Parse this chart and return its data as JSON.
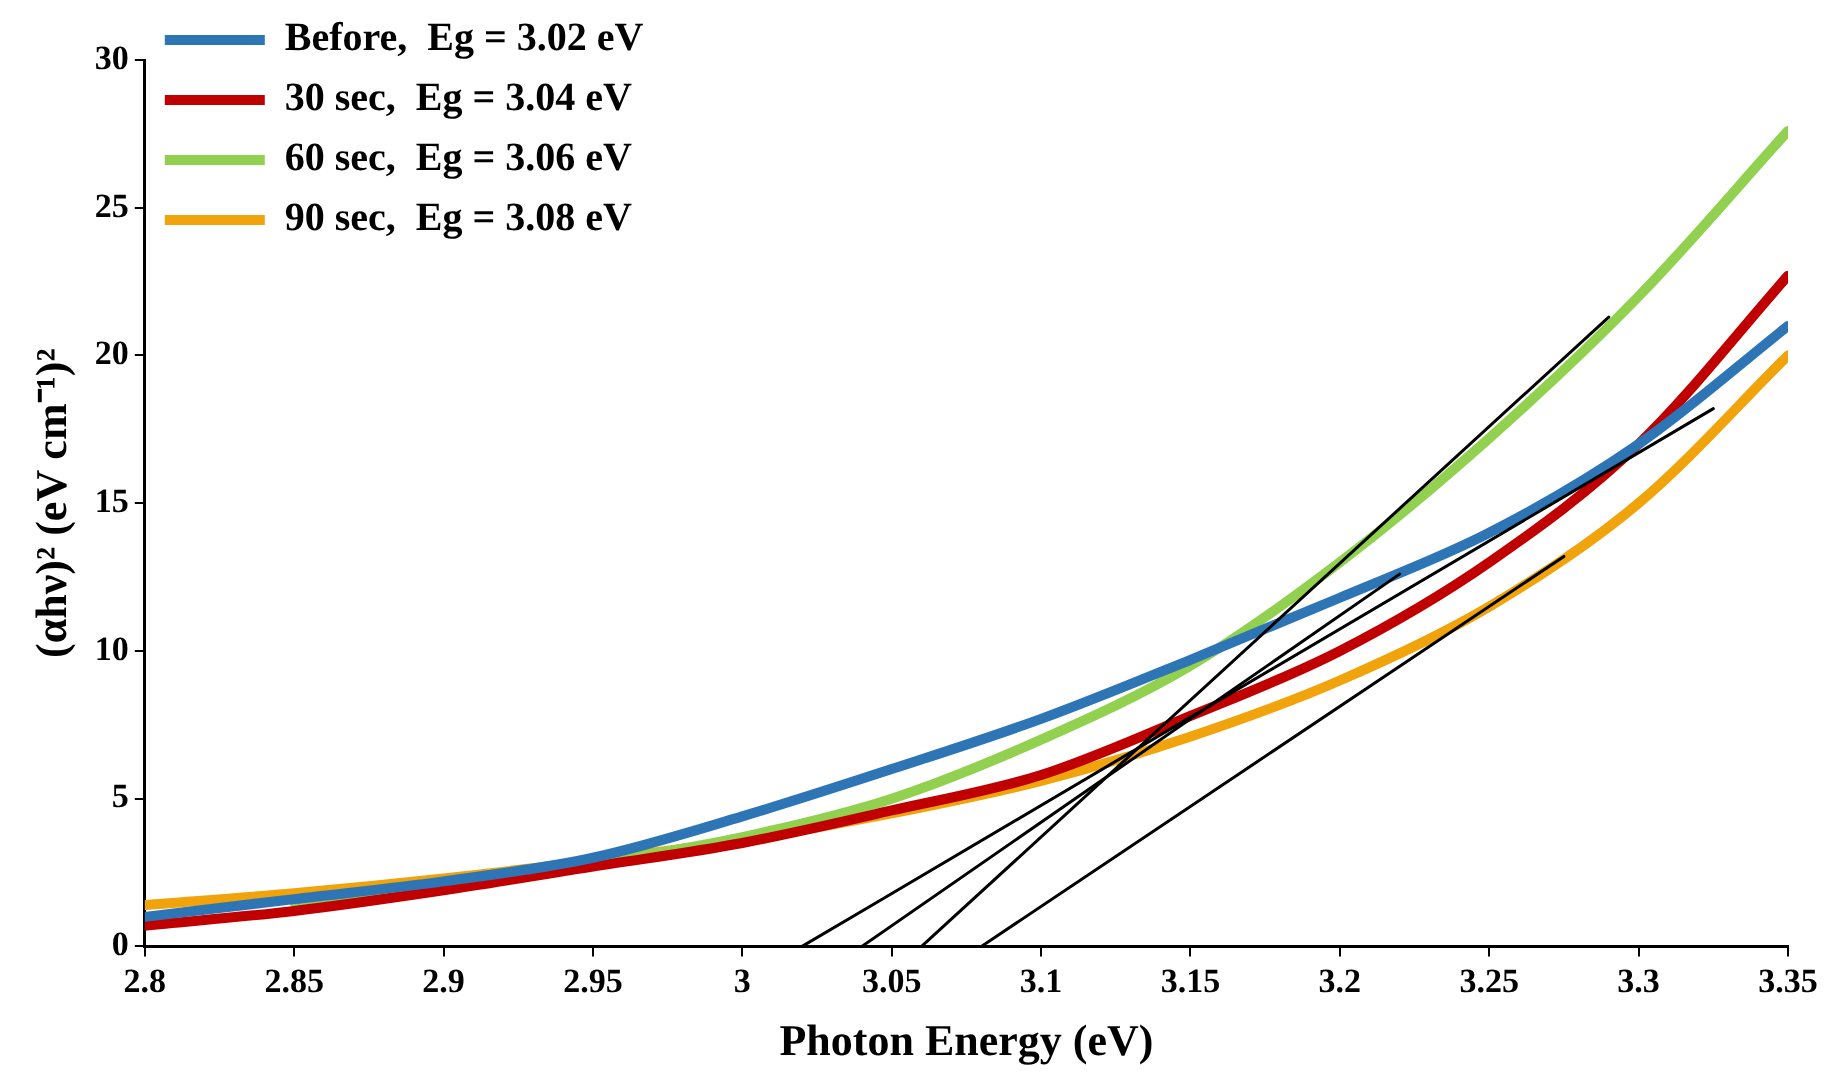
{
  "chart_data": {
    "type": "line",
    "xlabel": "Photon Energy (eV)",
    "ylabel": "(αhν)² (eV cm⁻¹)²",
    "x": [
      2.8,
      2.85,
      2.9,
      2.95,
      3.0,
      3.05,
      3.1,
      3.15,
      3.2,
      3.25,
      3.3,
      3.35
    ],
    "series": [
      {
        "name": "Before,  Eg = 3.02 eV",
        "color": "#2e75b6",
        "values": [
          1.0,
          1.6,
          2.2,
          3.0,
          4.4,
          6.0,
          7.7,
          9.7,
          11.8,
          14.0,
          17.0,
          21.0
        ]
      },
      {
        "name": "30 sec,  Eg = 3.04 eV",
        "color": "#c00000",
        "values": [
          0.7,
          1.2,
          1.9,
          2.7,
          3.5,
          4.6,
          5.8,
          7.8,
          10.0,
          13.0,
          17.0,
          22.7
        ]
      },
      {
        "name": "60 sec,  Eg = 3.06 eV",
        "color": "#92d050",
        "values": [
          null,
          1.5,
          2.0,
          2.8,
          3.7,
          5.0,
          7.0,
          9.5,
          13.0,
          17.2,
          22.0,
          27.6
        ]
      },
      {
        "name": "90 sec,  Eg = 3.08 eV",
        "color": "#f0a30a",
        "values": [
          1.4,
          1.8,
          2.3,
          2.9,
          3.6,
          4.5,
          5.6,
          7.1,
          9.0,
          11.5,
          15.0,
          20.0
        ]
      },
      {
        "type": "line",
        "color": "#000000",
        "x": [
          3.02,
          3.325
        ],
        "values": [
          0,
          18.2
        ]
      },
      {
        "type": "line",
        "color": "#000000",
        "x": [
          3.04,
          3.22
        ],
        "values": [
          0,
          12.6
        ]
      },
      {
        "type": "line",
        "color": "#000000",
        "x": [
          3.06,
          3.29
        ],
        "values": [
          0,
          21.3
        ]
      },
      {
        "type": "line",
        "color": "#000000",
        "x": [
          3.08,
          3.275
        ],
        "values": [
          0,
          13.2
        ]
      }
    ],
    "xlim": [
      2.8,
      3.35
    ],
    "xticks": [
      2.8,
      2.85,
      2.9,
      2.95,
      3,
      3.05,
      3.1,
      3.15,
      3.2,
      3.25,
      3.3,
      3.35
    ],
    "ylim": [
      0,
      30
    ],
    "yticks": [
      0,
      5,
      10,
      15,
      20,
      25,
      30
    ],
    "grid": false,
    "legend": "top left",
    "marker": "none",
    "line_style": "solid"
  }
}
